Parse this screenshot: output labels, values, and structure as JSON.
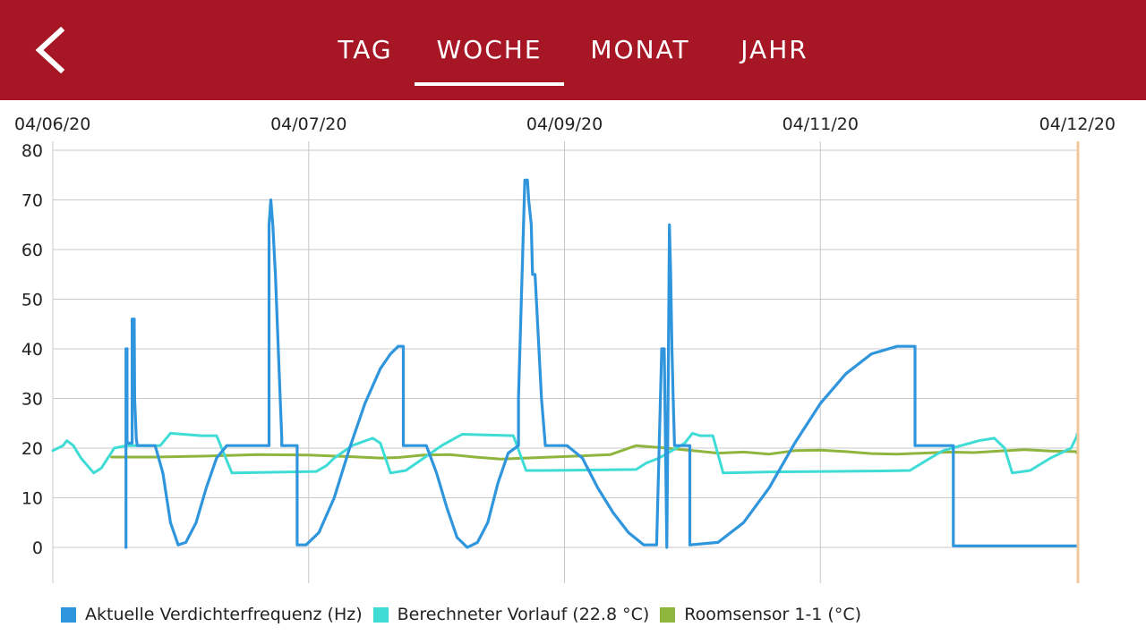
{
  "tabs": [
    {
      "label": "TAG",
      "selected": false
    },
    {
      "label": "WOCHE",
      "selected": true
    },
    {
      "label": "MONAT",
      "selected": false
    },
    {
      "label": "JAHR",
      "selected": false
    }
  ],
  "colors": {
    "header": "#a61625",
    "compressor": "#2f95dc",
    "flow": "#3fdcd6",
    "room": "#8fb53e",
    "grid": "#c8c8c8",
    "cursor": "#f2c89a"
  },
  "chart_data": {
    "type": "line",
    "title": "",
    "xlabel": "",
    "ylabel": "",
    "x_unit": "days",
    "x_ticks": [
      {
        "x": 0,
        "label": "04/06/20"
      },
      {
        "x": 1,
        "label": "04/07/20"
      },
      {
        "x": 2,
        "label": "04/09/20"
      },
      {
        "x": 3,
        "label": "04/11/20"
      },
      {
        "x": 4,
        "label": "04/12/20"
      }
    ],
    "xlim": [
      0,
      4
    ],
    "ylim": [
      0,
      80
    ],
    "yticks": [
      0,
      10,
      20,
      30,
      40,
      50,
      60,
      70,
      80
    ],
    "grid": true,
    "legend": "bottom",
    "series": [
      {
        "name": "Aktuelle Verdichterfrequenz (Hz)",
        "color": "#2f95dc",
        "points": [
          [
            0.286,
            0
          ],
          [
            0.286,
            40
          ],
          [
            0.29,
            40
          ],
          [
            0.29,
            21
          ],
          [
            0.31,
            21
          ],
          [
            0.31,
            46
          ],
          [
            0.318,
            46
          ],
          [
            0.32,
            30
          ],
          [
            0.326,
            22
          ],
          [
            0.33,
            20.5
          ],
          [
            0.4,
            20.5
          ],
          [
            0.43,
            15
          ],
          [
            0.46,
            5
          ],
          [
            0.49,
            0.5
          ],
          [
            0.52,
            1
          ],
          [
            0.56,
            5
          ],
          [
            0.6,
            12
          ],
          [
            0.64,
            18
          ],
          [
            0.68,
            20.5
          ],
          [
            0.845,
            20.5
          ],
          [
            0.845,
            65
          ],
          [
            0.852,
            70
          ],
          [
            0.86,
            65
          ],
          [
            0.87,
            55
          ],
          [
            0.885,
            35
          ],
          [
            0.895,
            22
          ],
          [
            0.895,
            20.5
          ],
          [
            0.955,
            20.5
          ],
          [
            0.955,
            0.5
          ],
          [
            0.99,
            0.5
          ],
          [
            1.04,
            3
          ],
          [
            1.1,
            10
          ],
          [
            1.16,
            20
          ],
          [
            1.22,
            29
          ],
          [
            1.28,
            36
          ],
          [
            1.32,
            39
          ],
          [
            1.35,
            40.5
          ],
          [
            1.37,
            40.5
          ],
          [
            1.37,
            20.5
          ],
          [
            1.46,
            20.5
          ],
          [
            1.5,
            15
          ],
          [
            1.54,
            8
          ],
          [
            1.58,
            2
          ],
          [
            1.62,
            0
          ],
          [
            1.66,
            1
          ],
          [
            1.7,
            5
          ],
          [
            1.74,
            13
          ],
          [
            1.78,
            19
          ],
          [
            1.82,
            20.5
          ],
          [
            1.82,
            30
          ],
          [
            1.845,
            74
          ],
          [
            1.855,
            74
          ],
          [
            1.86,
            70
          ],
          [
            1.87,
            65
          ],
          [
            1.875,
            55
          ],
          [
            1.885,
            55
          ],
          [
            1.895,
            45
          ],
          [
            1.91,
            30
          ],
          [
            1.925,
            20.5
          ],
          [
            2.01,
            20.5
          ],
          [
            2.07,
            18
          ],
          [
            2.13,
            12
          ],
          [
            2.19,
            7
          ],
          [
            2.25,
            3
          ],
          [
            2.31,
            0.5
          ],
          [
            2.36,
            0.5
          ],
          [
            2.37,
            20
          ],
          [
            2.38,
            40
          ],
          [
            2.39,
            40
          ],
          [
            2.4,
            0
          ],
          [
            2.405,
            30
          ],
          [
            2.41,
            65
          ],
          [
            2.415,
            55
          ],
          [
            2.42,
            40
          ],
          [
            2.425,
            30
          ],
          [
            2.43,
            20.5
          ],
          [
            2.49,
            20.5
          ],
          [
            2.49,
            0.5
          ],
          [
            2.6,
            1
          ],
          [
            2.7,
            5
          ],
          [
            2.8,
            12
          ],
          [
            2.9,
            21
          ],
          [
            3.0,
            29
          ],
          [
            3.1,
            35
          ],
          [
            3.2,
            39
          ],
          [
            3.3,
            40.5
          ],
          [
            3.37,
            40.5
          ],
          [
            3.37,
            20.5
          ],
          [
            3.52,
            20.5
          ],
          [
            3.52,
            0.3
          ],
          [
            4.0,
            0.3
          ]
        ]
      },
      {
        "name": "Berechneter Vorlauf (22.8 °C)",
        "color": "#3fdcd6",
        "points": [
          [
            0.0,
            19.5
          ],
          [
            0.04,
            20.5
          ],
          [
            0.055,
            21.5
          ],
          [
            0.08,
            20.5
          ],
          [
            0.11,
            18
          ],
          [
            0.16,
            15
          ],
          [
            0.19,
            16
          ],
          [
            0.24,
            20
          ],
          [
            0.29,
            20.5
          ],
          [
            0.42,
            20.5
          ],
          [
            0.46,
            23
          ],
          [
            0.51,
            22.8
          ],
          [
            0.58,
            22.5
          ],
          [
            0.64,
            22.5
          ],
          [
            0.7,
            15
          ],
          [
            1.03,
            15.3
          ],
          [
            1.07,
            16.5
          ],
          [
            1.1,
            18
          ],
          [
            1.17,
            20.5
          ],
          [
            1.25,
            22
          ],
          [
            1.28,
            21
          ],
          [
            1.32,
            15
          ],
          [
            1.38,
            15.5
          ],
          [
            1.45,
            18
          ],
          [
            1.52,
            20.5
          ],
          [
            1.6,
            22.8
          ],
          [
            1.8,
            22.5
          ],
          [
            1.85,
            15.5
          ],
          [
            1.92,
            15.5
          ],
          [
            2.28,
            15.7
          ],
          [
            2.32,
            17
          ],
          [
            2.37,
            18
          ],
          [
            2.42,
            19.5
          ],
          [
            2.47,
            21
          ],
          [
            2.5,
            23
          ],
          [
            2.53,
            22.5
          ],
          [
            2.58,
            22.5
          ],
          [
            2.62,
            15
          ],
          [
            2.8,
            15.2
          ],
          [
            3.25,
            15.4
          ],
          [
            3.35,
            15.5
          ],
          [
            3.43,
            18
          ],
          [
            3.48,
            19.5
          ],
          [
            3.55,
            20.5
          ],
          [
            3.62,
            21.5
          ],
          [
            3.68,
            22
          ],
          [
            3.72,
            20
          ],
          [
            3.75,
            15
          ],
          [
            3.82,
            15.5
          ],
          [
            3.9,
            18
          ],
          [
            3.98,
            20
          ],
          [
            4.02,
            22.5
          ],
          [
            4.05,
            22.8
          ]
        ]
      },
      {
        "name": "Roomsensor 1-1 (°C)",
        "color": "#8fb53e",
        "points": [
          [
            0.23,
            18.2
          ],
          [
            0.4,
            18.2
          ],
          [
            0.6,
            18.4
          ],
          [
            0.8,
            18.7
          ],
          [
            1.0,
            18.6
          ],
          [
            1.15,
            18.3
          ],
          [
            1.28,
            18.0
          ],
          [
            1.35,
            18.1
          ],
          [
            1.45,
            18.6
          ],
          [
            1.55,
            18.7
          ],
          [
            1.65,
            18.2
          ],
          [
            1.75,
            17.8
          ],
          [
            1.85,
            18.0
          ],
          [
            1.95,
            18.2
          ],
          [
            2.05,
            18.4
          ],
          [
            2.18,
            18.7
          ],
          [
            2.28,
            20.5
          ],
          [
            2.4,
            20.0
          ],
          [
            2.5,
            19.5
          ],
          [
            2.6,
            19.0
          ],
          [
            2.7,
            19.2
          ],
          [
            2.8,
            18.8
          ],
          [
            2.9,
            19.5
          ],
          [
            3.0,
            19.6
          ],
          [
            3.1,
            19.3
          ],
          [
            3.2,
            18.9
          ],
          [
            3.3,
            18.8
          ],
          [
            3.4,
            19.0
          ],
          [
            3.5,
            19.2
          ],
          [
            3.6,
            19.1
          ],
          [
            3.7,
            19.4
          ],
          [
            3.8,
            19.7
          ],
          [
            3.9,
            19.4
          ],
          [
            4.0,
            19.3
          ],
          [
            4.05,
            19.0
          ]
        ]
      }
    ]
  }
}
